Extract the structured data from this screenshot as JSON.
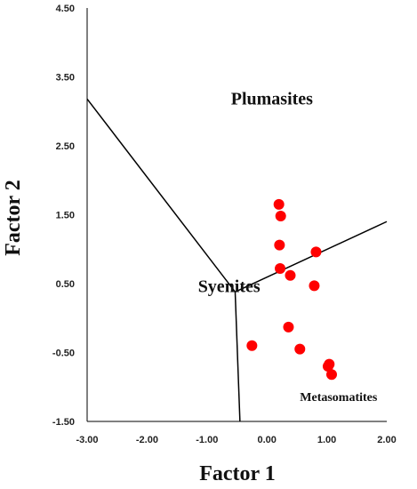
{
  "chart_data": {
    "type": "scatter",
    "title": "",
    "xlabel": "Factor 1",
    "ylabel": "Factor 2",
    "xlim": [
      -3.0,
      2.0
    ],
    "ylim": [
      -1.5,
      4.5
    ],
    "x_ticks": [
      "-3.00",
      "-2.00",
      "-1.00",
      "0.00",
      "1.00",
      "2.00"
    ],
    "y_ticks": [
      "4.50",
      "3.50",
      "2.50",
      "1.50",
      "0.50",
      "-0.50",
      "-1.50"
    ],
    "x_tick_values": [
      -3,
      -2,
      -1,
      0,
      1,
      2
    ],
    "y_tick_values": [
      4.5,
      3.5,
      2.5,
      1.5,
      0.5,
      -0.5,
      -1.5
    ],
    "grid": false,
    "legend": "none",
    "point_color": "#ff0000",
    "boundaries": [
      {
        "x": [
          -3.0,
          -0.53
        ],
        "y": [
          3.18,
          0.38
        ]
      },
      {
        "x": [
          -0.53,
          2.0
        ],
        "y": [
          0.38,
          1.4
        ]
      },
      {
        "x": [
          -0.53,
          -0.45
        ],
        "y": [
          0.38,
          -1.5
        ]
      }
    ],
    "regions": [
      {
        "label": "Plumasites",
        "x": -0.6,
        "y": 3.1,
        "size": "large"
      },
      {
        "label": "Syenites",
        "x": -1.15,
        "y": 0.38,
        "size": "large"
      },
      {
        "label": "Metasomatites",
        "x": 0.55,
        "y": -1.2,
        "size": "small"
      }
    ],
    "series": [
      {
        "points": [
          {
            "x": 0.2,
            "y": 1.65
          },
          {
            "x": 0.23,
            "y": 1.48
          },
          {
            "x": 0.21,
            "y": 1.06
          },
          {
            "x": 0.82,
            "y": 0.96
          },
          {
            "x": 0.22,
            "y": 0.72
          },
          {
            "x": 0.39,
            "y": 0.62
          },
          {
            "x": 0.79,
            "y": 0.47
          },
          {
            "x": 0.36,
            "y": -0.13
          },
          {
            "x": -0.25,
            "y": -0.4
          },
          {
            "x": 0.55,
            "y": -0.45
          },
          {
            "x": 1.04,
            "y": -0.67
          },
          {
            "x": 1.02,
            "y": -0.7
          },
          {
            "x": 1.08,
            "y": -0.82
          }
        ]
      }
    ]
  }
}
